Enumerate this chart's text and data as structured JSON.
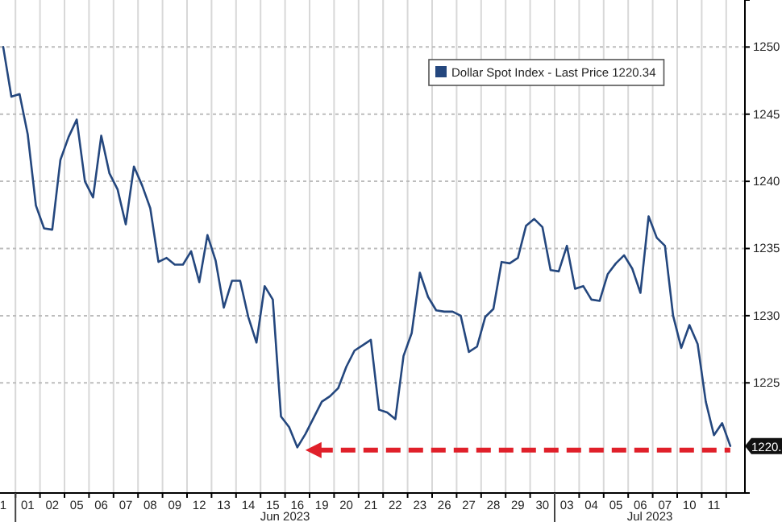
{
  "chart_data": {
    "type": "line",
    "categories": [
      null,
      "1",
      null,
      null,
      "01",
      null,
      null,
      "02",
      null,
      null,
      "05",
      null,
      null,
      "06",
      null,
      null,
      "07",
      null,
      null,
      "08",
      null,
      null,
      "09",
      null,
      null,
      "12",
      null,
      null,
      "13",
      null,
      null,
      "14",
      null,
      null,
      "15",
      null,
      null,
      "16",
      null,
      null,
      "19",
      null,
      null,
      "20",
      null,
      null,
      "21",
      null,
      null,
      "22",
      null,
      null,
      "23",
      null,
      null,
      "26",
      null,
      null,
      "27",
      null,
      null,
      "28",
      null,
      null,
      "29",
      null,
      null,
      "30",
      null,
      null,
      "03",
      null,
      null,
      "04",
      null,
      null,
      "05",
      null,
      null,
      "06",
      null,
      null,
      "07",
      null,
      null,
      "10",
      null,
      null,
      "11",
      null,
      null,
      null,
      null
    ],
    "ylim": [
      1216.8,
      1253.5
    ],
    "yticks": [
      1225,
      1230,
      1235,
      1240,
      1245,
      1250
    ],
    "grid": true,
    "legend": "top right",
    "annotations": [
      "Jun 2023",
      "Jul 2023",
      {
        "text": "1220.",
        "y": 1220.3
      }
    ],
    "ref_lines": [
      {
        "axis": "y",
        "value": 1220,
        "color": "#e0202a",
        "line_style": "dashed"
      }
    ],
    "series": [
      {
        "name": "Dollar Spot Index - Last Price 1220.34",
        "color": "#24477e",
        "values": [
          null,
          1250.0,
          1246.3,
          1246.5,
          1243.5,
          1238.2,
          1236.5,
          1236.4,
          1241.6,
          1243.3,
          1244.6,
          1240.0,
          1238.8,
          1243.4,
          1240.6,
          1239.4,
          1236.8,
          1241.1,
          1239.7,
          1238.0,
          1234.0,
          1234.3,
          1233.8,
          1233.8,
          1234.8,
          1232.5,
          1236.0,
          1234.1,
          1230.6,
          1232.6,
          1232.6,
          1229.9,
          1228.0,
          1232.2,
          1231.2,
          1222.5,
          1221.7,
          1220.2,
          1221.2,
          1222.4,
          1223.6,
          1224.0,
          1224.6,
          1226.2,
          1227.4,
          1227.8,
          1228.2,
          1223.0,
          1222.8,
          1222.3,
          1227.0,
          1228.7,
          1233.2,
          1231.4,
          1230.4,
          1230.3,
          1230.3,
          1230.0,
          1227.3,
          1227.7,
          1229.9,
          1230.5,
          1234.0,
          1233.9,
          1234.3,
          1236.7,
          1237.2,
          1236.6,
          1233.4,
          1233.3,
          1235.2,
          1232.0,
          1232.2,
          1231.2,
          1231.1,
          1233.1,
          1233.9,
          1234.5,
          1233.5,
          1231.7,
          1237.4,
          1235.8,
          1235.2,
          1230.0,
          1227.6,
          1229.3,
          1227.9,
          1223.6,
          1221.1,
          1222.0,
          1220.3,
          null,
          null
        ]
      }
    ]
  }
}
